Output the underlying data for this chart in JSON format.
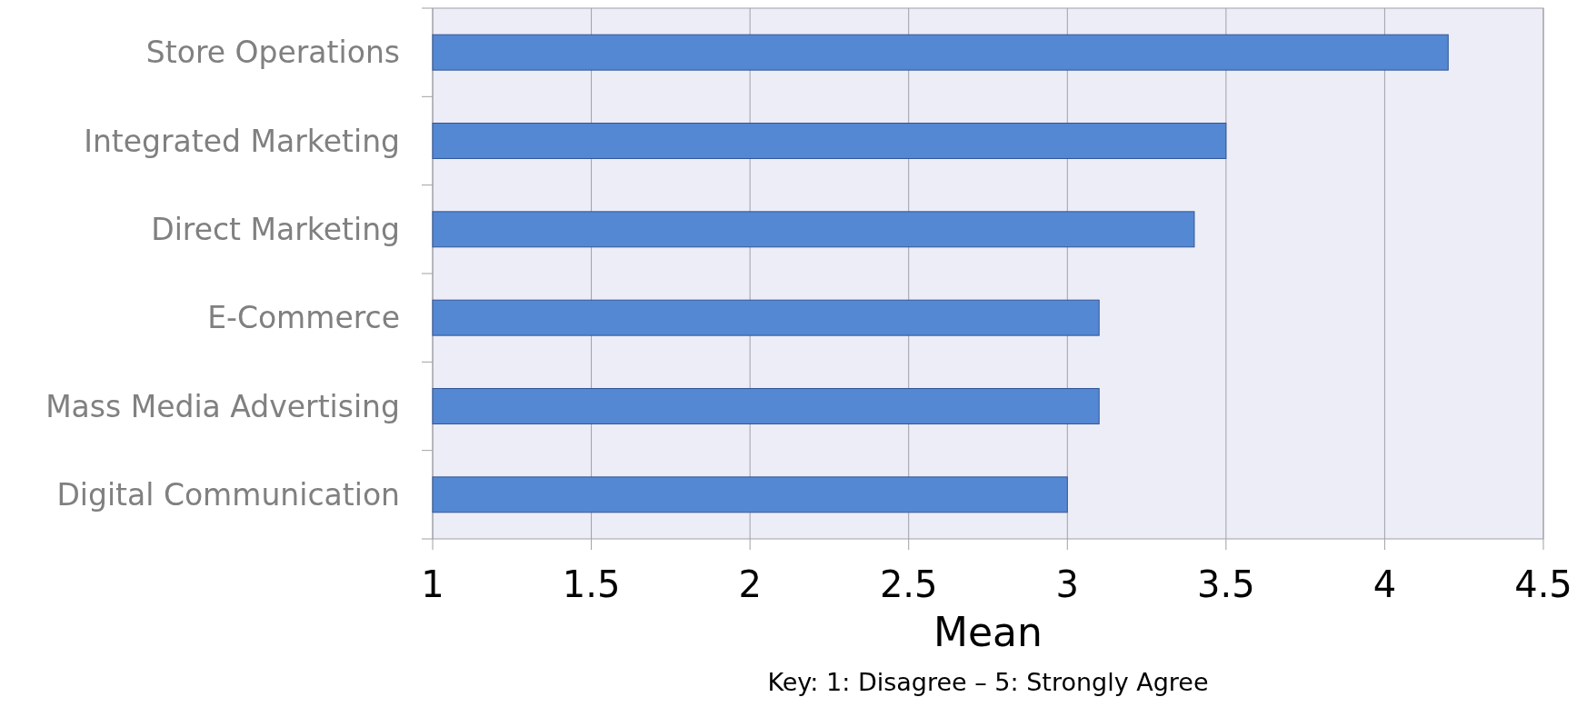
{
  "chart_data": {
    "type": "bar",
    "orientation": "horizontal",
    "xlabel": "Mean",
    "annotations": [
      "Key: 1: Disagree – 5: Strongly Agree"
    ],
    "categories": [
      "Store Operations",
      "Integrated Marketing",
      "Direct Marketing",
      "E-Commerce",
      "Mass Media Advertising",
      "Digital Communication"
    ],
    "values": [
      4.2,
      3.5,
      3.4,
      3.1,
      3.1,
      3.0
    ],
    "color": "#5588d3",
    "xlim": [
      1,
      4.5
    ],
    "xticks": [
      1,
      1.5,
      2,
      2.5,
      3,
      3.5,
      4,
      4.5
    ],
    "grid": "x"
  }
}
